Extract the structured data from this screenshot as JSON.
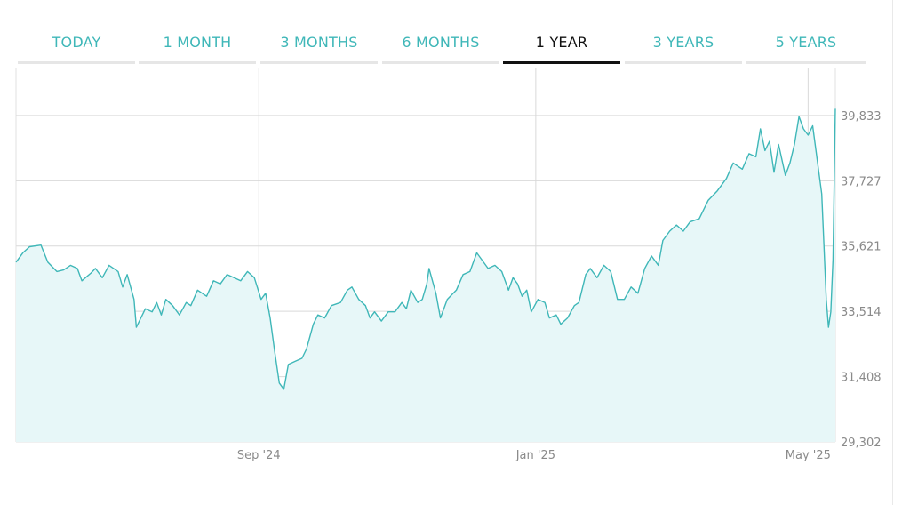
{
  "tabs": [
    {
      "label": "TODAY",
      "active": false
    },
    {
      "label": "1 MONTH",
      "active": false
    },
    {
      "label": "3 MONTHS",
      "active": false
    },
    {
      "label": "6 MONTHS",
      "active": false
    },
    {
      "label": "1 YEAR",
      "active": true
    },
    {
      "label": "3 YEARS",
      "active": false
    },
    {
      "label": "5 YEARS",
      "active": false
    }
  ],
  "colors": {
    "accent": "#3fb7b8",
    "area_fill": "#e7f7f8",
    "grid": "#d9d9d9",
    "tick_text": "#8a8a8a",
    "active_tab": "#111111"
  },
  "chart_data": {
    "type": "area",
    "title": "",
    "xlabel": "",
    "ylabel": "",
    "x_ticks": [
      {
        "label": "Sep '24",
        "date": "2024-09-01"
      },
      {
        "label": "Jan '25",
        "date": "2025-01-01"
      },
      {
        "label": "May '25",
        "date": "2025-05-01"
      }
    ],
    "y_ticks": [
      "29,302",
      "31,408",
      "33,514",
      "35,621",
      "37,727",
      "39,833"
    ],
    "ylim": [
      29302,
      41380
    ],
    "xlim": [
      "2024-05-17",
      "2025-05-13"
    ],
    "grid": true,
    "series": [
      {
        "points": [
          [
            "2024-05-17",
            35100
          ],
          [
            "2024-05-20",
            35400
          ],
          [
            "2024-05-23",
            35600
          ],
          [
            "2024-05-28",
            35650
          ],
          [
            "2024-05-31",
            35100
          ],
          [
            "2024-06-04",
            34800
          ],
          [
            "2024-06-07",
            34850
          ],
          [
            "2024-06-10",
            35000
          ],
          [
            "2024-06-13",
            34900
          ],
          [
            "2024-06-15",
            34500
          ],
          [
            "2024-06-19",
            34750
          ],
          [
            "2024-06-21",
            34900
          ],
          [
            "2024-06-24",
            34600
          ],
          [
            "2024-06-27",
            35000
          ],
          [
            "2024-07-01",
            34800
          ],
          [
            "2024-07-03",
            34300
          ],
          [
            "2024-07-05",
            34700
          ],
          [
            "2024-07-08",
            33900
          ],
          [
            "2024-07-09",
            33000
          ],
          [
            "2024-07-11",
            33300
          ],
          [
            "2024-07-13",
            33600
          ],
          [
            "2024-07-16",
            33500
          ],
          [
            "2024-07-18",
            33800
          ],
          [
            "2024-07-20",
            33400
          ],
          [
            "2024-07-22",
            33900
          ],
          [
            "2024-07-25",
            33700
          ],
          [
            "2024-07-28",
            33400
          ],
          [
            "2024-07-31",
            33800
          ],
          [
            "2024-08-02",
            33700
          ],
          [
            "2024-08-05",
            34200
          ],
          [
            "2024-08-09",
            34000
          ],
          [
            "2024-08-12",
            34500
          ],
          [
            "2024-08-15",
            34400
          ],
          [
            "2024-08-18",
            34700
          ],
          [
            "2024-08-21",
            34600
          ],
          [
            "2024-08-24",
            34500
          ],
          [
            "2024-08-27",
            34800
          ],
          [
            "2024-08-30",
            34600
          ],
          [
            "2024-09-02",
            33900
          ],
          [
            "2024-09-04",
            34100
          ],
          [
            "2024-09-06",
            33300
          ],
          [
            "2024-09-08",
            32200
          ],
          [
            "2024-09-10",
            31200
          ],
          [
            "2024-09-12",
            31000
          ],
          [
            "2024-09-14",
            31800
          ],
          [
            "2024-09-17",
            31900
          ],
          [
            "2024-09-20",
            32000
          ],
          [
            "2024-09-22",
            32300
          ],
          [
            "2024-09-25",
            33100
          ],
          [
            "2024-09-27",
            33400
          ],
          [
            "2024-09-30",
            33300
          ],
          [
            "2024-10-03",
            33700
          ],
          [
            "2024-10-07",
            33800
          ],
          [
            "2024-10-10",
            34200
          ],
          [
            "2024-10-12",
            34300
          ],
          [
            "2024-10-15",
            33900
          ],
          [
            "2024-10-18",
            33700
          ],
          [
            "2024-10-20",
            33300
          ],
          [
            "2024-10-22",
            33500
          ],
          [
            "2024-10-25",
            33200
          ],
          [
            "2024-10-28",
            33500
          ],
          [
            "2024-10-31",
            33500
          ],
          [
            "2024-11-03",
            33800
          ],
          [
            "2024-11-05",
            33600
          ],
          [
            "2024-11-07",
            34200
          ],
          [
            "2024-11-10",
            33800
          ],
          [
            "2024-11-12",
            33900
          ],
          [
            "2024-11-14",
            34400
          ],
          [
            "2024-11-15",
            34900
          ],
          [
            "2024-11-18",
            34100
          ],
          [
            "2024-11-20",
            33300
          ],
          [
            "2024-11-23",
            33900
          ],
          [
            "2024-11-27",
            34200
          ],
          [
            "2024-11-30",
            34700
          ],
          [
            "2024-12-03",
            34800
          ],
          [
            "2024-12-06",
            35400
          ],
          [
            "2024-12-08",
            35200
          ],
          [
            "2024-12-11",
            34900
          ],
          [
            "2024-12-14",
            35000
          ],
          [
            "2024-12-17",
            34800
          ],
          [
            "2024-12-20",
            34200
          ],
          [
            "2024-12-22",
            34600
          ],
          [
            "2024-12-24",
            34400
          ],
          [
            "2024-12-26",
            34000
          ],
          [
            "2024-12-28",
            34200
          ],
          [
            "2024-12-30",
            33500
          ],
          [
            "2025-01-02",
            33900
          ],
          [
            "2025-01-05",
            33800
          ],
          [
            "2025-01-07",
            33300
          ],
          [
            "2025-01-10",
            33400
          ],
          [
            "2025-01-12",
            33100
          ],
          [
            "2025-01-15",
            33300
          ],
          [
            "2025-01-18",
            33700
          ],
          [
            "2025-01-20",
            33800
          ],
          [
            "2025-01-23",
            34700
          ],
          [
            "2025-01-25",
            34900
          ],
          [
            "2025-01-28",
            34600
          ],
          [
            "2025-01-31",
            35000
          ],
          [
            "2025-02-03",
            34800
          ],
          [
            "2025-02-06",
            33900
          ],
          [
            "2025-02-09",
            33900
          ],
          [
            "2025-02-12",
            34300
          ],
          [
            "2025-02-15",
            34100
          ],
          [
            "2025-02-18",
            34900
          ],
          [
            "2025-02-21",
            35300
          ],
          [
            "2025-02-24",
            35000
          ],
          [
            "2025-02-26",
            35800
          ],
          [
            "2025-03-01",
            36100
          ],
          [
            "2025-03-04",
            36300
          ],
          [
            "2025-03-07",
            36100
          ],
          [
            "2025-03-10",
            36400
          ],
          [
            "2025-03-14",
            36500
          ],
          [
            "2025-03-18",
            37100
          ],
          [
            "2025-03-22",
            37400
          ],
          [
            "2025-03-26",
            37800
          ],
          [
            "2025-03-29",
            38300
          ],
          [
            "2025-04-02",
            38100
          ],
          [
            "2025-04-05",
            38600
          ],
          [
            "2025-04-08",
            38500
          ],
          [
            "2025-04-10",
            39400
          ],
          [
            "2025-04-12",
            38700
          ],
          [
            "2025-04-14",
            39000
          ],
          [
            "2025-04-16",
            38000
          ],
          [
            "2025-04-18",
            38900
          ],
          [
            "2025-04-21",
            37900
          ],
          [
            "2025-04-23",
            38300
          ],
          [
            "2025-04-25",
            38900
          ],
          [
            "2025-04-27",
            39800
          ],
          [
            "2025-04-29",
            39400
          ],
          [
            "2025-05-01",
            39200
          ],
          [
            "2025-05-03",
            39500
          ],
          [
            "2025-05-05",
            38400
          ],
          [
            "2025-05-07",
            37300
          ],
          [
            "2025-05-09",
            33900
          ],
          [
            "2025-05-10",
            33000
          ],
          [
            "2025-05-11",
            33500
          ],
          [
            "2025-05-12",
            35200
          ],
          [
            "2025-05-13",
            40050
          ]
        ]
      }
    ]
  }
}
